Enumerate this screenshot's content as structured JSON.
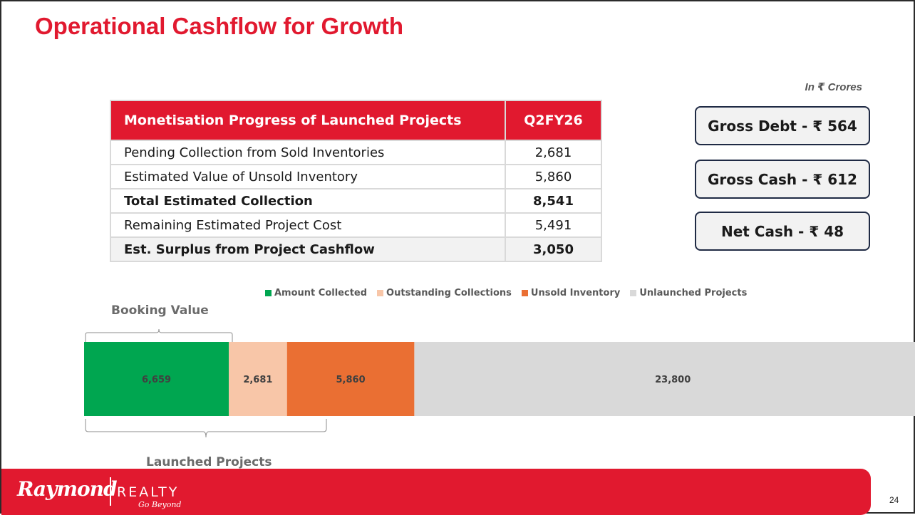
{
  "title": "Operational Cashflow for Growth",
  "units": "In ₹ Crores",
  "table": {
    "header": [
      "Monetisation Progress of Launched Projects",
      "Q2FY26"
    ],
    "rows": [
      {
        "label": "Pending Collection from Sold Inventories",
        "value": "2,681",
        "bold": false
      },
      {
        "label": "Estimated Value of Unsold Inventory",
        "value": "5,860",
        "bold": false
      },
      {
        "label": "Total Estimated Collection",
        "value": "8,541",
        "bold": true
      },
      {
        "label": "Remaining Estimated Project Cost",
        "value": "5,491",
        "bold": false
      },
      {
        "label": "Est. Surplus from Project Cashflow",
        "value": "3,050",
        "bold": true
      }
    ]
  },
  "kpis": [
    {
      "label": "Gross Debt - ₹ 564"
    },
    {
      "label": "Gross Cash - ₹ 612"
    },
    {
      "label": "Net Cash - ₹ 48"
    }
  ],
  "chart_data": {
    "type": "bar",
    "orientation": "horizontal-stacked",
    "categories": [
      ""
    ],
    "series": [
      {
        "name": "Amount Collected",
        "values": [
          6659
        ],
        "label": "6,659",
        "color": "#00a650"
      },
      {
        "name": "Outstanding Collections",
        "values": [
          2681
        ],
        "label": "2,681",
        "color": "#f8c6a8"
      },
      {
        "name": "Unsold Inventory",
        "values": [
          5860
        ],
        "label": "5,860",
        "color": "#ea6f33"
      },
      {
        "name": "Unlaunched Projects",
        "values": [
          23800
        ],
        "label": "23,800",
        "color": "#d9d9d9"
      }
    ],
    "legend": "top",
    "annotations": [
      "Booking Value",
      "Launched Projects"
    ],
    "xlim": [
      0,
      39000
    ]
  },
  "footer": {
    "logo_main": "Raymond",
    "logo_sub": "REALTY",
    "logo_tag": "Go Beyond",
    "page_number": "24"
  }
}
